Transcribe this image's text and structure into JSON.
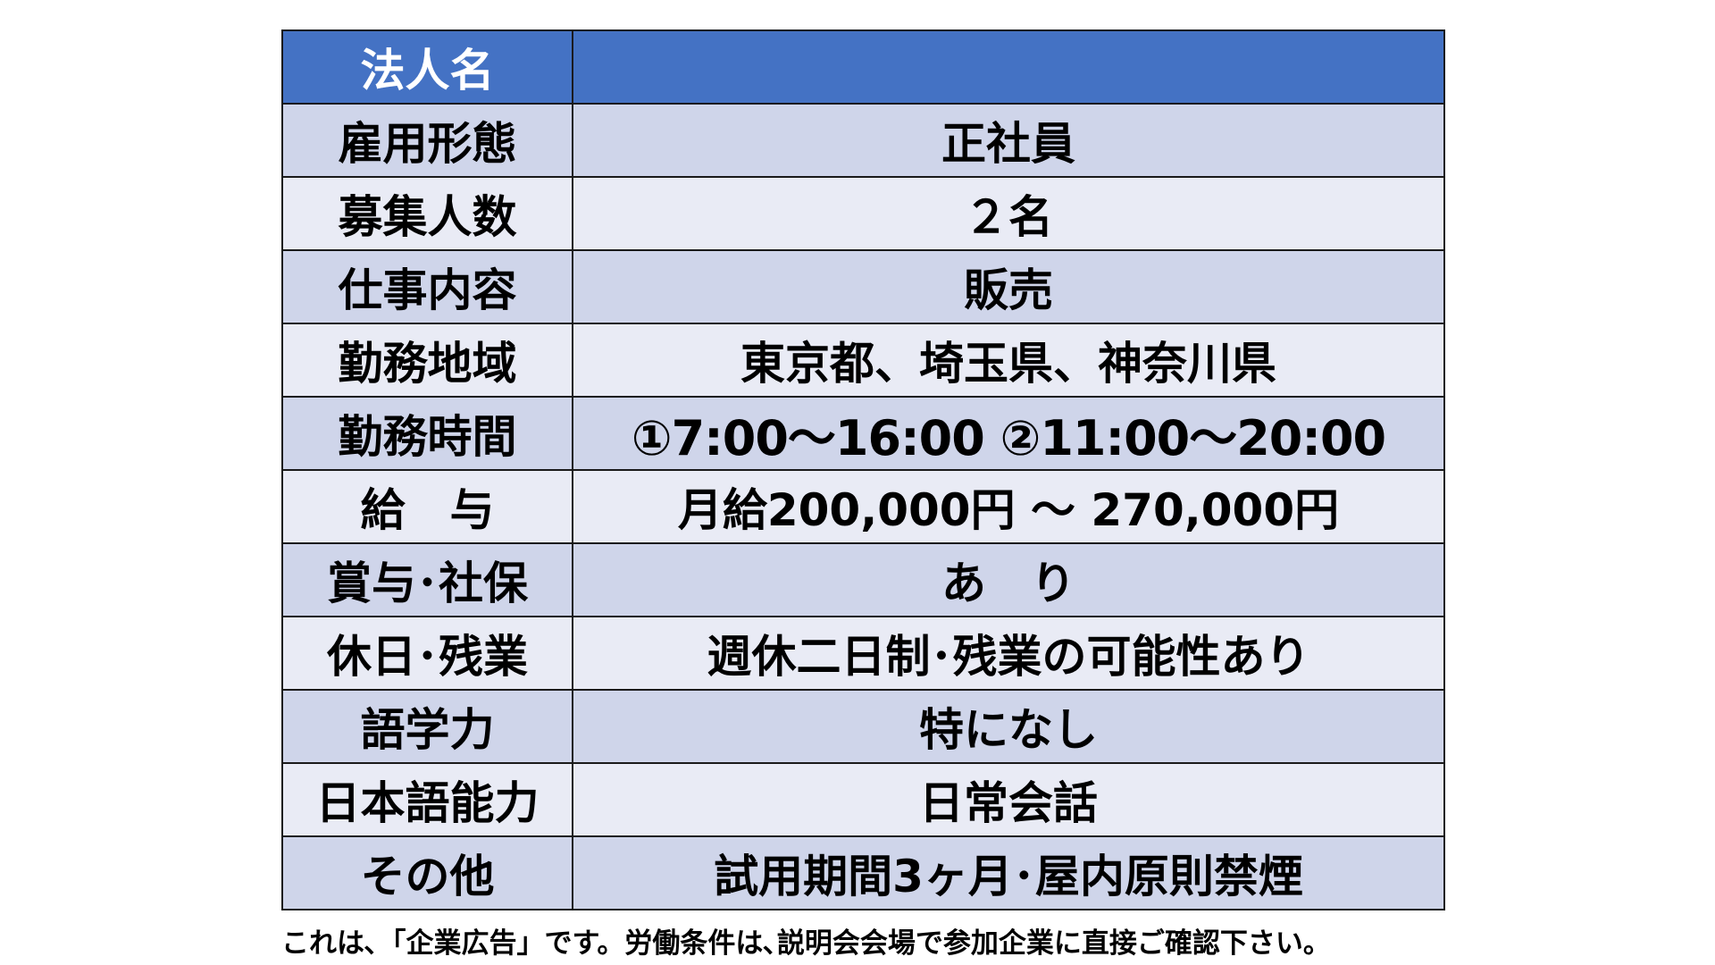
{
  "colors": {
    "header_bg": "#4472C4",
    "row_dark": "#CFD5EA",
    "row_light": "#E9EBF5"
  },
  "header": {
    "label": "法人名",
    "value": ""
  },
  "rows": [
    {
      "label": "雇用形態",
      "value": "正社員"
    },
    {
      "label": "募集人数",
      "value": "２名"
    },
    {
      "label": "仕事内容",
      "value": "販売"
    },
    {
      "label": "勤務地域",
      "value": "東京都、埼玉県、神奈川県"
    },
    {
      "label": "勤務時間",
      "value": "①7:00～16:00 ②11:00～20:00"
    },
    {
      "label": "給　与",
      "value": "月給200,000円 ～ 270,000円"
    },
    {
      "label": "賞与･社保",
      "value": "あ　り"
    },
    {
      "label": "休日･残業",
      "value": "週休二日制･残業の可能性あり"
    },
    {
      "label": "語学力",
      "value": "特になし"
    },
    {
      "label": "日本語能力",
      "value": "日常会話"
    },
    {
      "label": "その他",
      "value": "試用期間3ヶ月･屋内原則禁煙"
    }
  ],
  "footer_note": "これは､「企業広告」です。労働条件は､説明会会場で参加企業に直接ご確認下さい。"
}
